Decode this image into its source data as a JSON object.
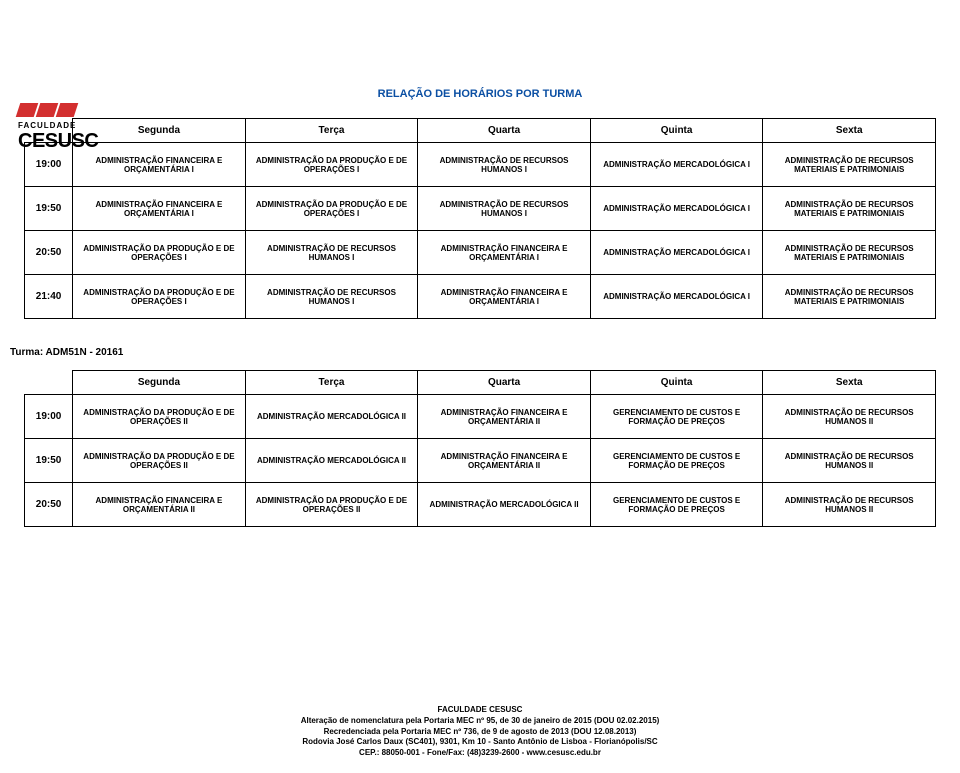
{
  "logo": {
    "small": "FACULDADE",
    "big": "CESUSC",
    "bar_color": "#d32f2f"
  },
  "title": "RELAÇÃO DE HORÁRIOS POR TURMA",
  "title_color": "#0b4fa3",
  "days": [
    "Segunda",
    "Terça",
    "Quarta",
    "Quinta",
    "Sexta"
  ],
  "table1": {
    "rows": [
      {
        "time": "19:00",
        "cells": [
          "ADMINISTRAÇÃO FINANCEIRA E ORÇAMENTÁRIA I",
          "ADMINISTRAÇÃO DA PRODUÇÃO E DE OPERAÇÕES I",
          "ADMINISTRAÇÃO DE RECURSOS HUMANOS I",
          "ADMINISTRAÇÃO MERCADOLÓGICA I",
          "ADMINISTRAÇÃO DE RECURSOS MATERIAIS E PATRIMONIAIS"
        ]
      },
      {
        "time": "19:50",
        "cells": [
          "ADMINISTRAÇÃO FINANCEIRA E ORÇAMENTÁRIA I",
          "ADMINISTRAÇÃO DA PRODUÇÃO E DE OPERAÇÕES I",
          "ADMINISTRAÇÃO DE RECURSOS HUMANOS I",
          "ADMINISTRAÇÃO MERCADOLÓGICA I",
          "ADMINISTRAÇÃO DE RECURSOS MATERIAIS E PATRIMONIAIS"
        ]
      },
      {
        "time": "20:50",
        "cells": [
          "ADMINISTRAÇÃO DA PRODUÇÃO E DE OPERAÇÕES I",
          "ADMINISTRAÇÃO DE RECURSOS HUMANOS I",
          "ADMINISTRAÇÃO FINANCEIRA E ORÇAMENTÁRIA I",
          "ADMINISTRAÇÃO MERCADOLÓGICA I",
          "ADMINISTRAÇÃO DE RECURSOS MATERIAIS E PATRIMONIAIS"
        ]
      },
      {
        "time": "21:40",
        "cells": [
          "ADMINISTRAÇÃO DA PRODUÇÃO E DE OPERAÇÕES I",
          "ADMINISTRAÇÃO DE RECURSOS HUMANOS I",
          "ADMINISTRAÇÃO FINANCEIRA E ORÇAMENTÁRIA I",
          "ADMINISTRAÇÃO MERCADOLÓGICA I",
          "ADMINISTRAÇÃO DE RECURSOS MATERIAIS E PATRIMONIAIS"
        ]
      }
    ]
  },
  "turma_label": "Turma: ADM51N - 20161",
  "table2": {
    "rows": [
      {
        "time": "19:00",
        "cells": [
          "ADMINISTRAÇÃO DA PRODUÇÃO E DE OPERAÇÕES II",
          "ADMINISTRAÇÃO MERCADOLÓGICA II",
          "ADMINISTRAÇÃO FINANCEIRA E ORÇAMENTÁRIA II",
          "GERENCIAMENTO DE CUSTOS E FORMAÇÃO DE PREÇOS",
          "ADMINISTRAÇÃO DE RECURSOS HUMANOS II"
        ]
      },
      {
        "time": "19:50",
        "cells": [
          "ADMINISTRAÇÃO DA PRODUÇÃO E DE OPERAÇÕES II",
          "ADMINISTRAÇÃO MERCADOLÓGICA II",
          "ADMINISTRAÇÃO FINANCEIRA E ORÇAMENTÁRIA II",
          "GERENCIAMENTO DE CUSTOS E FORMAÇÃO DE PREÇOS",
          "ADMINISTRAÇÃO DE RECURSOS HUMANOS II"
        ]
      },
      {
        "time": "20:50",
        "cells": [
          "ADMINISTRAÇÃO FINANCEIRA E ORÇAMENTÁRIA II",
          "ADMINISTRAÇÃO DA PRODUÇÃO E DE OPERAÇÕES II",
          "ADMINISTRAÇÃO MERCADOLÓGICA II",
          "GERENCIAMENTO DE CUSTOS E FORMAÇÃO DE PREÇOS",
          "ADMINISTRAÇÃO DE RECURSOS HUMANOS II"
        ]
      }
    ]
  },
  "footer": {
    "line1": "FACULDADE CESUSC",
    "line2": "Alteração de nomenclatura pela Portaria MEC nº 95, de 30 de janeiro de 2015 (DOU 02.02.2015)",
    "line3": "Recredenciada pela Portaria MEC nº 736, de 9 de agosto de 2013 (DOU 12.08.2013)",
    "line4": "Rodovia José Carlos Daux  (SC401), 9301, Km 10 - Santo Antônio de Lisboa - Florianópolis/SC",
    "line5": "CEP.: 88050-001 - Fone/Fax: (48)3239-2600 - www.cesusc.edu.br"
  }
}
